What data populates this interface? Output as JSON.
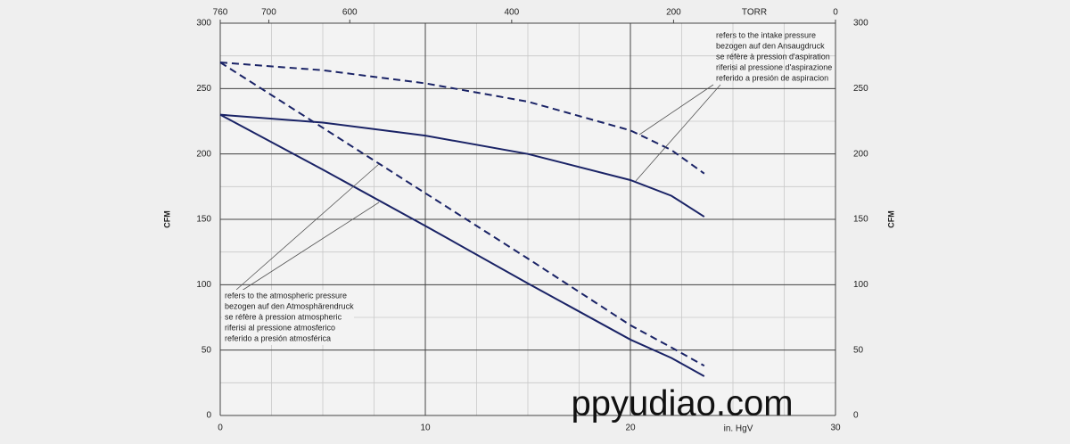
{
  "chart_data": {
    "type": "line",
    "x_label": "in. HgV",
    "y_label": "CFM",
    "x2_label": "TORR",
    "x": [
      0,
      5,
      10,
      15,
      20,
      22,
      23.6
    ],
    "series": [
      {
        "color": "#1a2366",
        "dash": false,
        "values": [
          230,
          224,
          214,
          200,
          180,
          168,
          152
        ]
      },
      {
        "color": "#1a2366",
        "dash": true,
        "values": [
          270,
          264,
          254,
          240,
          218,
          203,
          185
        ]
      },
      {
        "color": "#1a2366",
        "dash": false,
        "values": [
          230,
          188,
          145,
          101,
          58,
          44,
          30
        ]
      },
      {
        "color": "#1a2366",
        "dash": true,
        "values": [
          270,
          220,
          170,
          120,
          69,
          52,
          38
        ]
      }
    ],
    "xlim": [
      0,
      30
    ],
    "xticks": [
      0,
      10,
      20,
      30
    ],
    "x2lim": [
      760,
      0
    ],
    "x2ticks": [
      760,
      700,
      600,
      400,
      200,
      0
    ],
    "ylim": [
      0,
      300
    ],
    "yticks": [
      0,
      50,
      100,
      150,
      200,
      250,
      300
    ],
    "minor_grid_step": {
      "x": 2.5,
      "y": 25
    },
    "grid": true,
    "annotations": [
      {
        "lines": [
          "refers to the intake pressure",
          "bezogen auf den Ansaugdruck",
          "se réfère à pression d'aspiration",
          "riferisi al pressione d'aspirazione",
          "referido a presión de aspiracion"
        ]
      },
      {
        "lines": [
          "refers to the atmospheric pressure",
          "bezogen auf den Atmosphärendruck",
          "se réfère à pression atmospheric",
          "riferisi al pressione atmosferico",
          "referido a presión atmosférica"
        ]
      }
    ],
    "watermark": "ppyudiao.com"
  }
}
